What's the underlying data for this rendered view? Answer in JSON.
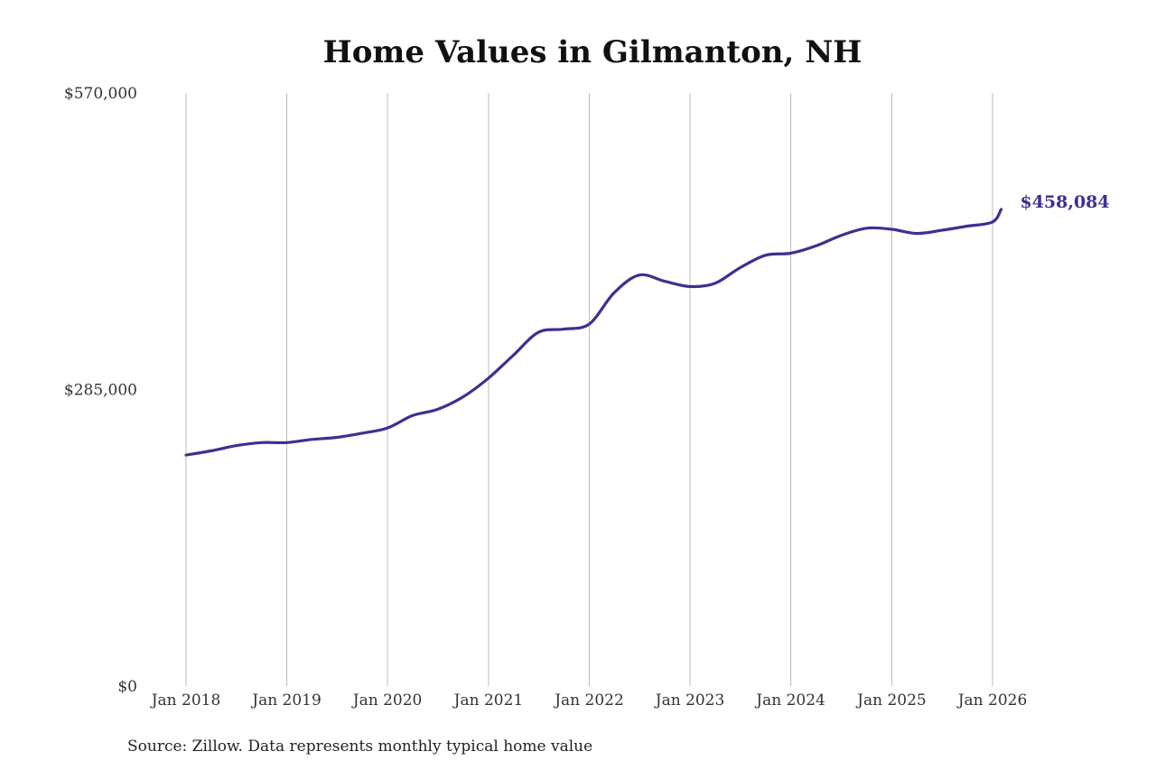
{
  "chart_data": {
    "type": "line",
    "title": "Home Values in Gilmanton, NH",
    "source": "Source: Zillow. Data represents monthly typical home value",
    "xlabel": "",
    "ylabel": "",
    "ylim": [
      0,
      570000
    ],
    "y_ticks": [
      {
        "value": 0,
        "label": "$0"
      },
      {
        "value": 285000,
        "label": "$285,000"
      },
      {
        "value": 570000,
        "label": "$570,000"
      }
    ],
    "x_ticks": [
      {
        "value": "2018-01",
        "label": "Jan 2018"
      },
      {
        "value": "2019-01",
        "label": "Jan 2019"
      },
      {
        "value": "2020-01",
        "label": "Jan 2020"
      },
      {
        "value": "2021-01",
        "label": "Jan 2021"
      },
      {
        "value": "2022-01",
        "label": "Jan 2022"
      },
      {
        "value": "2023-01",
        "label": "Jan 2023"
      },
      {
        "value": "2024-01",
        "label": "Jan 2024"
      },
      {
        "value": "2025-01",
        "label": "Jan 2025"
      },
      {
        "value": "2026-01",
        "label": "Jan 2026"
      }
    ],
    "grid": "vertical",
    "line_color": "#3b3191",
    "end_label": "$458,084",
    "series": [
      {
        "x": [
          "2018-01",
          "2018-04",
          "2018-07",
          "2018-10",
          "2019-01",
          "2019-04",
          "2019-07",
          "2019-10",
          "2020-01",
          "2020-04",
          "2020-07",
          "2020-10",
          "2021-01",
          "2021-04",
          "2021-07",
          "2021-10",
          "2022-01",
          "2022-04",
          "2022-07",
          "2022-10",
          "2023-01",
          "2023-04",
          "2023-07",
          "2023-10",
          "2024-01",
          "2024-04",
          "2024-07",
          "2024-10",
          "2025-01",
          "2025-04",
          "2025-07",
          "2025-10",
          "2026-01",
          "2026-02"
        ],
        "values": [
          222000,
          226000,
          231000,
          234000,
          234000,
          237000,
          239000,
          243000,
          248000,
          260000,
          266000,
          278000,
          296000,
          318000,
          340000,
          343000,
          348000,
          378000,
          395000,
          389000,
          384000,
          387000,
          402000,
          414000,
          416000,
          423000,
          433000,
          440000,
          439000,
          435000,
          438000,
          442000,
          446000,
          458084
        ]
      }
    ]
  }
}
